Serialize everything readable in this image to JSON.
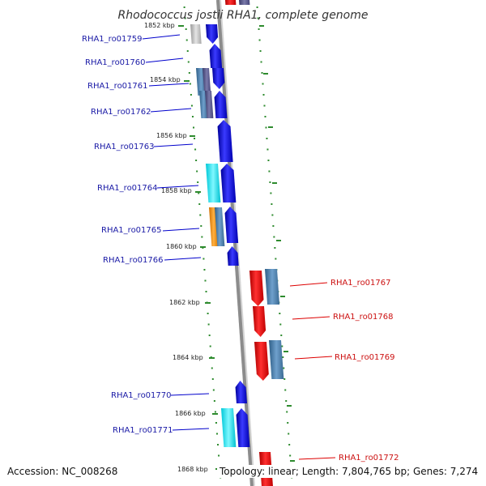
{
  "title": "Rhodococcus jostii RHA1, complete genome",
  "footer": {
    "accession": "Accession: NC_008268",
    "topology": "Topology: linear; Length: 7,804,765 bp; Genes: 7,274"
  },
  "colors": {
    "backbone": "#888888",
    "tick": "#2e8b2e",
    "leader_left": "#0000cc",
    "leader_right": "#dd0000",
    "label_left": "#1a1aa6",
    "label_right": "#cc1111"
  },
  "tick_labels": [
    "1852 kbp",
    "1854 kbp",
    "1856 kbp",
    "1858 kbp",
    "1860 kbp",
    "1862 kbp",
    "1864 kbp",
    "1866 kbp",
    "1868 kbp"
  ],
  "genes_left": [
    "RHA1_ro01759",
    "RHA1_ro01760",
    "RHA1_ro01761",
    "RHA1_ro01762",
    "RHA1_ro01763",
    "RHA1_ro01764",
    "RHA1_ro01765",
    "RHA1_ro01766",
    "RHA1_ro01770",
    "RHA1_ro01771"
  ],
  "genes_right": [
    "RHA1_ro01767",
    "RHA1_ro01768",
    "RHA1_ro01769",
    "RHA1_ro01772"
  ]
}
